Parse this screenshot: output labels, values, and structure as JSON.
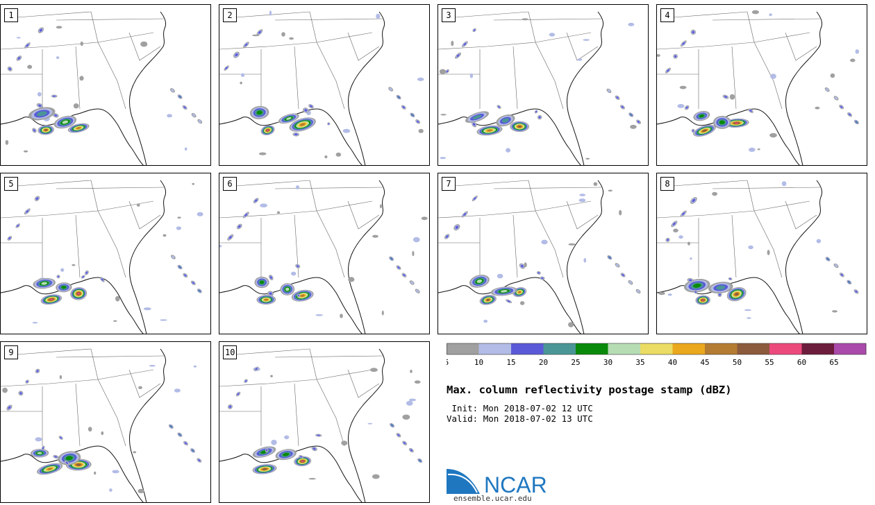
{
  "product": {
    "title": "Max. column reflectivity postage stamp (dBZ)",
    "init_label": "Init:",
    "init_value": "Mon 2018-07-02 12 UTC",
    "valid_label": "Valid:",
    "valid_value": "Mon 2018-07-02 13 UTC"
  },
  "panels": [
    {
      "label": "1"
    },
    {
      "label": "2"
    },
    {
      "label": "3"
    },
    {
      "label": "4"
    },
    {
      "label": "5"
    },
    {
      "label": "6"
    },
    {
      "label": "7"
    },
    {
      "label": "8"
    },
    {
      "label": "9"
    },
    {
      "label": "10"
    }
  ],
  "colorbar": {
    "unit": "dBZ",
    "ticks": [
      "5",
      "10",
      "15",
      "20",
      "25",
      "30",
      "35",
      "40",
      "45",
      "50",
      "55",
      "60",
      "65"
    ],
    "bins": [
      {
        "from": 5,
        "to": 10,
        "color": "#a0a0a0"
      },
      {
        "from": 10,
        "to": 15,
        "color": "#b2bce6"
      },
      {
        "from": 15,
        "to": 20,
        "color": "#5a5ad8"
      },
      {
        "from": 20,
        "to": 25,
        "color": "#4a9696"
      },
      {
        "from": 25,
        "to": 30,
        "color": "#0a8a0a"
      },
      {
        "from": 30,
        "to": 35,
        "color": "#b6dcb4"
      },
      {
        "from": 35,
        "to": 40,
        "color": "#eadc64"
      },
      {
        "from": 40,
        "to": 45,
        "color": "#eaa81e"
      },
      {
        "from": 45,
        "to": 50,
        "color": "#b47c32"
      },
      {
        "from": 50,
        "to": 55,
        "color": "#8c5a3c"
      },
      {
        "from": 55,
        "to": 60,
        "color": "#ec4a7c"
      },
      {
        "from": 60,
        "to": 65,
        "color": "#6c1c3c"
      },
      {
        "from": 65,
        "to": 70,
        "color": "#aa4aaa"
      }
    ]
  },
  "branding": {
    "logo_text": "NCAR",
    "url": "ensemble.ucar.edu",
    "logo_color": "#1f77c0"
  }
}
